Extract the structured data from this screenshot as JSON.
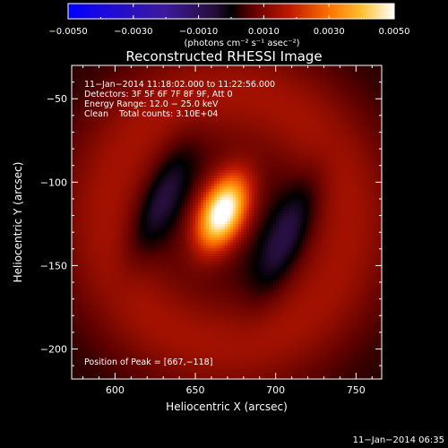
{
  "chart_data": {
    "type": "heatmap",
    "title": "Reconstructed RHESSI Image",
    "xlabel": "Heliocentric X (arcsec)",
    "ylabel": "Heliocentric Y (arcsec)",
    "xlim": [
      573,
      766
    ],
    "ylim": [
      -218,
      -30
    ],
    "x_ticks": [
      600,
      650,
      700,
      750
    ],
    "y_ticks": [
      -50,
      -100,
      -150,
      -200
    ],
    "x_tick_labels": [
      "600",
      "650",
      "700",
      "750"
    ],
    "y_tick_labels": [
      "−50",
      "−100",
      "−150",
      "−200"
    ],
    "colorbar": {
      "min": -0.005,
      "max": 0.005,
      "tick_labels": [
        "−0.0050",
        "−0.0030",
        "−0.0010",
        "0.0010",
        "0.0030",
        "0.0050"
      ],
      "units": "(photons cm⁻² s⁻¹ asec⁻²)"
    },
    "annotations": {
      "time_range": "11−Jan−2014 11:18:02.000 to 11:22:56.000",
      "detectors": "Detectors: 3F 5F 6F 7F 8F 9F, Att 0",
      "energy": "Energy Range: 12.0 − 25.0 keV",
      "clean": "Clean    Total counts: 3.10E+04",
      "peak": "Position of Peak = [667,−118]"
    },
    "peak": {
      "x": 667,
      "y": -118,
      "value": 0.005
    },
    "components": [
      {
        "x": 667,
        "y": -118,
        "amplitude": 0.0052,
        "sigma_x": 10,
        "sigma_y": 17,
        "tilt_deg": -25
      },
      {
        "x": 628,
        "y": -112,
        "amplitude": -0.0012,
        "sigma_x": 9,
        "sigma_y": 28,
        "tilt_deg": -25
      },
      {
        "x": 707,
        "y": -132,
        "amplitude": -0.0012,
        "sigma_x": 9,
        "sigma_y": 28,
        "tilt_deg": -25
      }
    ],
    "ring": {
      "x": 670,
      "y": -122,
      "radius": 75,
      "width": 22,
      "amplitude": 0.0012
    },
    "background": 0.00025
  },
  "footer": {
    "timestamp": "11−Jan−2014 06:35"
  }
}
